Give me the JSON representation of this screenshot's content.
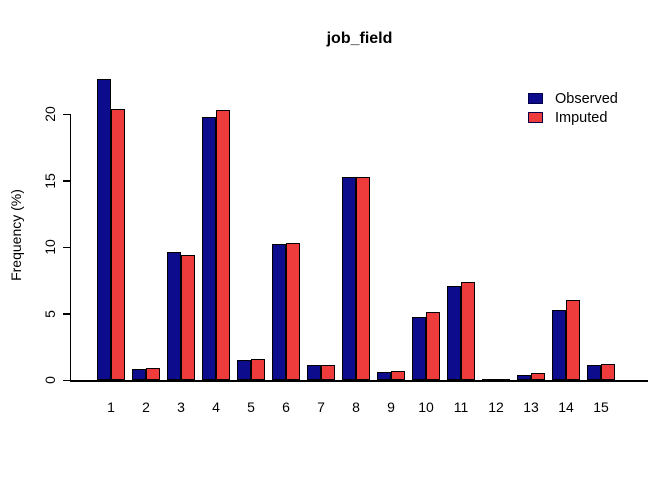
{
  "chart_data": {
    "type": "bar",
    "title": "job_field",
    "xlabel": "",
    "ylabel": "Frequency (%)",
    "categories": [
      "1",
      "2",
      "3",
      "4",
      "5",
      "6",
      "7",
      "8",
      "9",
      "10",
      "11",
      "12",
      "13",
      "14",
      "15"
    ],
    "series": [
      {
        "name": "Observed",
        "color": "#0C0C8C",
        "values": [
          22.6,
          0.8,
          9.6,
          19.8,
          1.5,
          10.2,
          1.1,
          15.3,
          0.6,
          4.7,
          7.1,
          0.1,
          0.4,
          5.3,
          1.1
        ]
      },
      {
        "name": "Imputed",
        "color": "#EE3B3B",
        "values": [
          20.4,
          0.9,
          9.4,
          20.3,
          1.6,
          10.3,
          1.1,
          15.3,
          0.7,
          5.1,
          7.4,
          0.1,
          0.5,
          6.0,
          1.2
        ]
      }
    ],
    "ylim": [
      0,
      23
    ],
    "yticks": [
      0,
      5,
      10,
      15,
      20
    ],
    "grid": false,
    "legend_position": "top-right",
    "bar_border_color": "#000000",
    "background_color": "#FFFFFF"
  }
}
